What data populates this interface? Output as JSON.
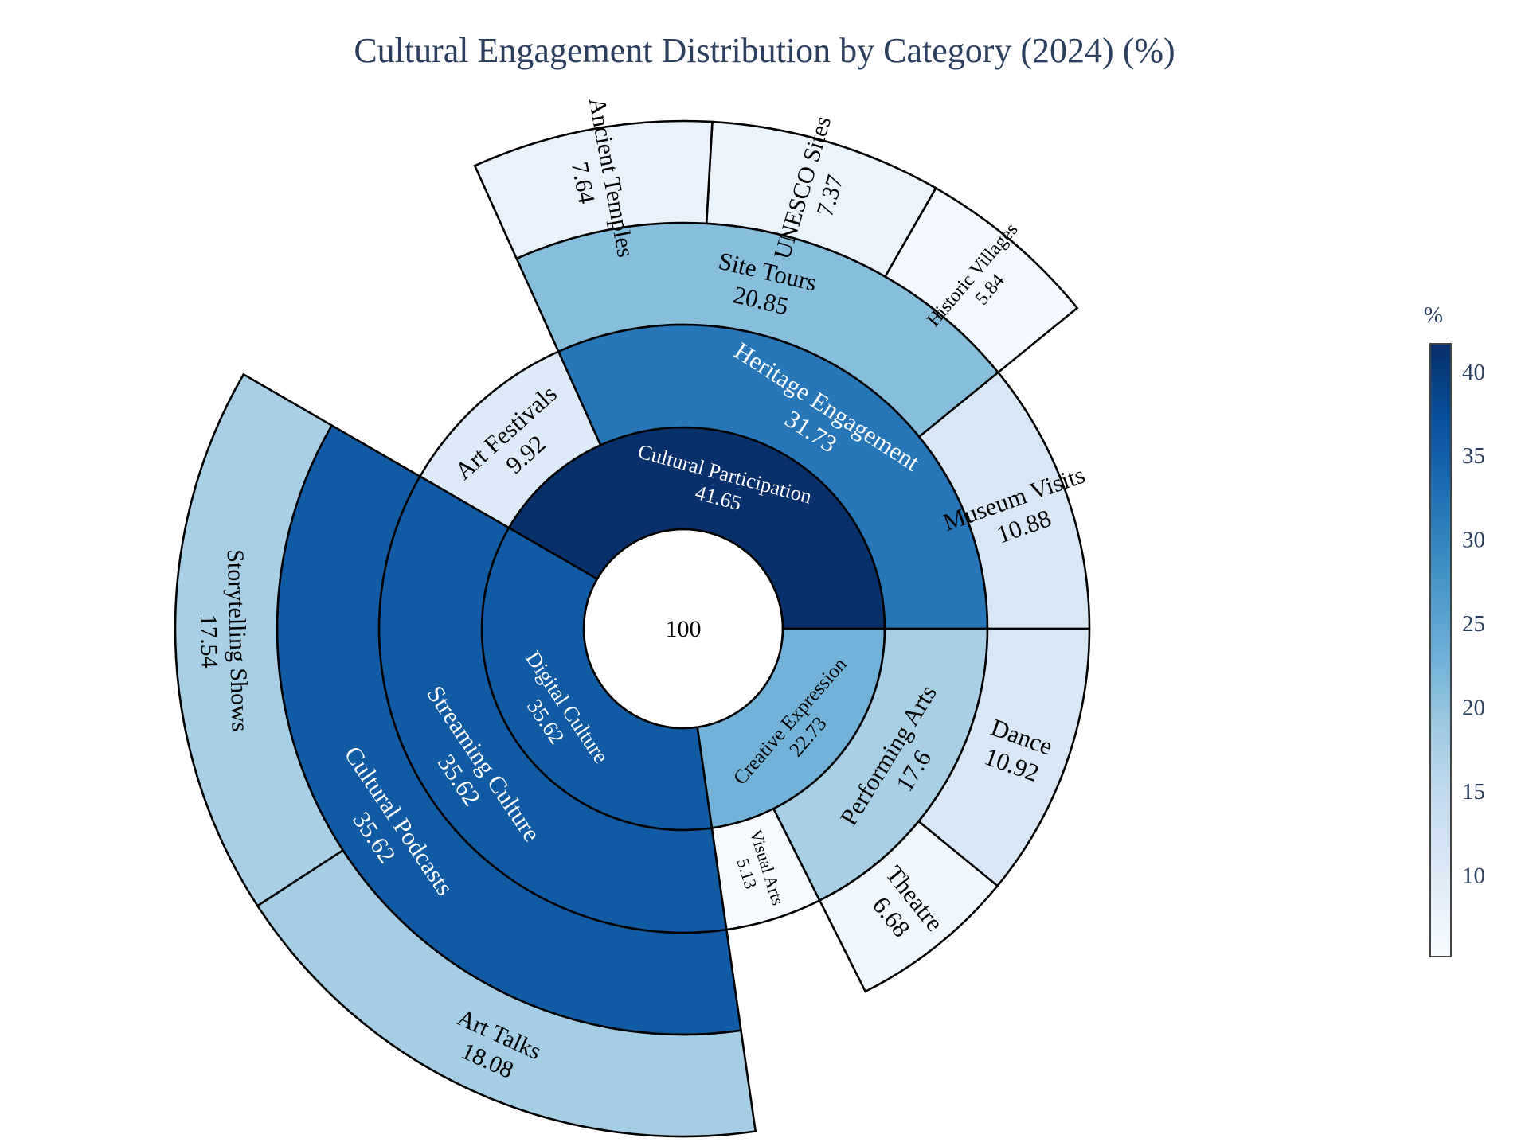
{
  "chart_data": {
    "type": "sunburst",
    "title": "Cultural Engagement Distribution by Category (2024) (%)",
    "root": {
      "label": "",
      "value": 100
    },
    "nodes": [
      {
        "id": "cp",
        "label": "Cultural Participation",
        "value": 41.65,
        "parent": ""
      },
      {
        "id": "he",
        "label": "Heritage Engagement",
        "value": 31.73,
        "parent": "cp"
      },
      {
        "id": "mv",
        "label": "Museum Visits",
        "value": 10.88,
        "parent": "he"
      },
      {
        "id": "st",
        "label": "Site Tours",
        "value": 20.85,
        "parent": "he"
      },
      {
        "id": "hv",
        "label": "Historic Villages",
        "value": 5.84,
        "parent": "st"
      },
      {
        "id": "us",
        "label": "UNESCO Sites",
        "value": 7.37,
        "parent": "st"
      },
      {
        "id": "at",
        "label": "Ancient Temples",
        "value": 7.64,
        "parent": "st"
      },
      {
        "id": "af",
        "label": "Art Festivals",
        "value": 9.92,
        "parent": "cp"
      },
      {
        "id": "dc",
        "label": "Digital Culture",
        "value": 35.62,
        "parent": ""
      },
      {
        "id": "sc",
        "label": "Streaming Culture",
        "value": 35.62,
        "parent": "dc"
      },
      {
        "id": "cpo",
        "label": "Cultural Podcasts",
        "value": 35.62,
        "parent": "sc"
      },
      {
        "id": "ss",
        "label": "Storytelling Shows",
        "value": 17.54,
        "parent": "cpo"
      },
      {
        "id": "atk",
        "label": "Art Talks",
        "value": 18.08,
        "parent": "cpo"
      },
      {
        "id": "ce",
        "label": "Creative Expression",
        "value": 22.73,
        "parent": ""
      },
      {
        "id": "va",
        "label": "Visual Arts",
        "value": 5.13,
        "parent": "ce"
      },
      {
        "id": "pa",
        "label": "Performing Arts",
        "value": 17.6,
        "parent": "ce"
      },
      {
        "id": "th",
        "label": "Theatre",
        "value": 6.68,
        "parent": "pa"
      },
      {
        "id": "da",
        "label": "Dance",
        "value": 10.92,
        "parent": "pa"
      }
    ],
    "colorbar": {
      "title": "%",
      "range": [
        5.13,
        41.65
      ],
      "ticks": [
        10,
        15,
        20,
        25,
        30,
        35,
        40
      ],
      "colorscale": "Blues",
      "colors": [
        "#f7fbff",
        "#deebf7",
        "#c6dbef",
        "#9ecae1",
        "#6baed6",
        "#4292c6",
        "#2171b5",
        "#08519c",
        "#08306b"
      ]
    }
  }
}
